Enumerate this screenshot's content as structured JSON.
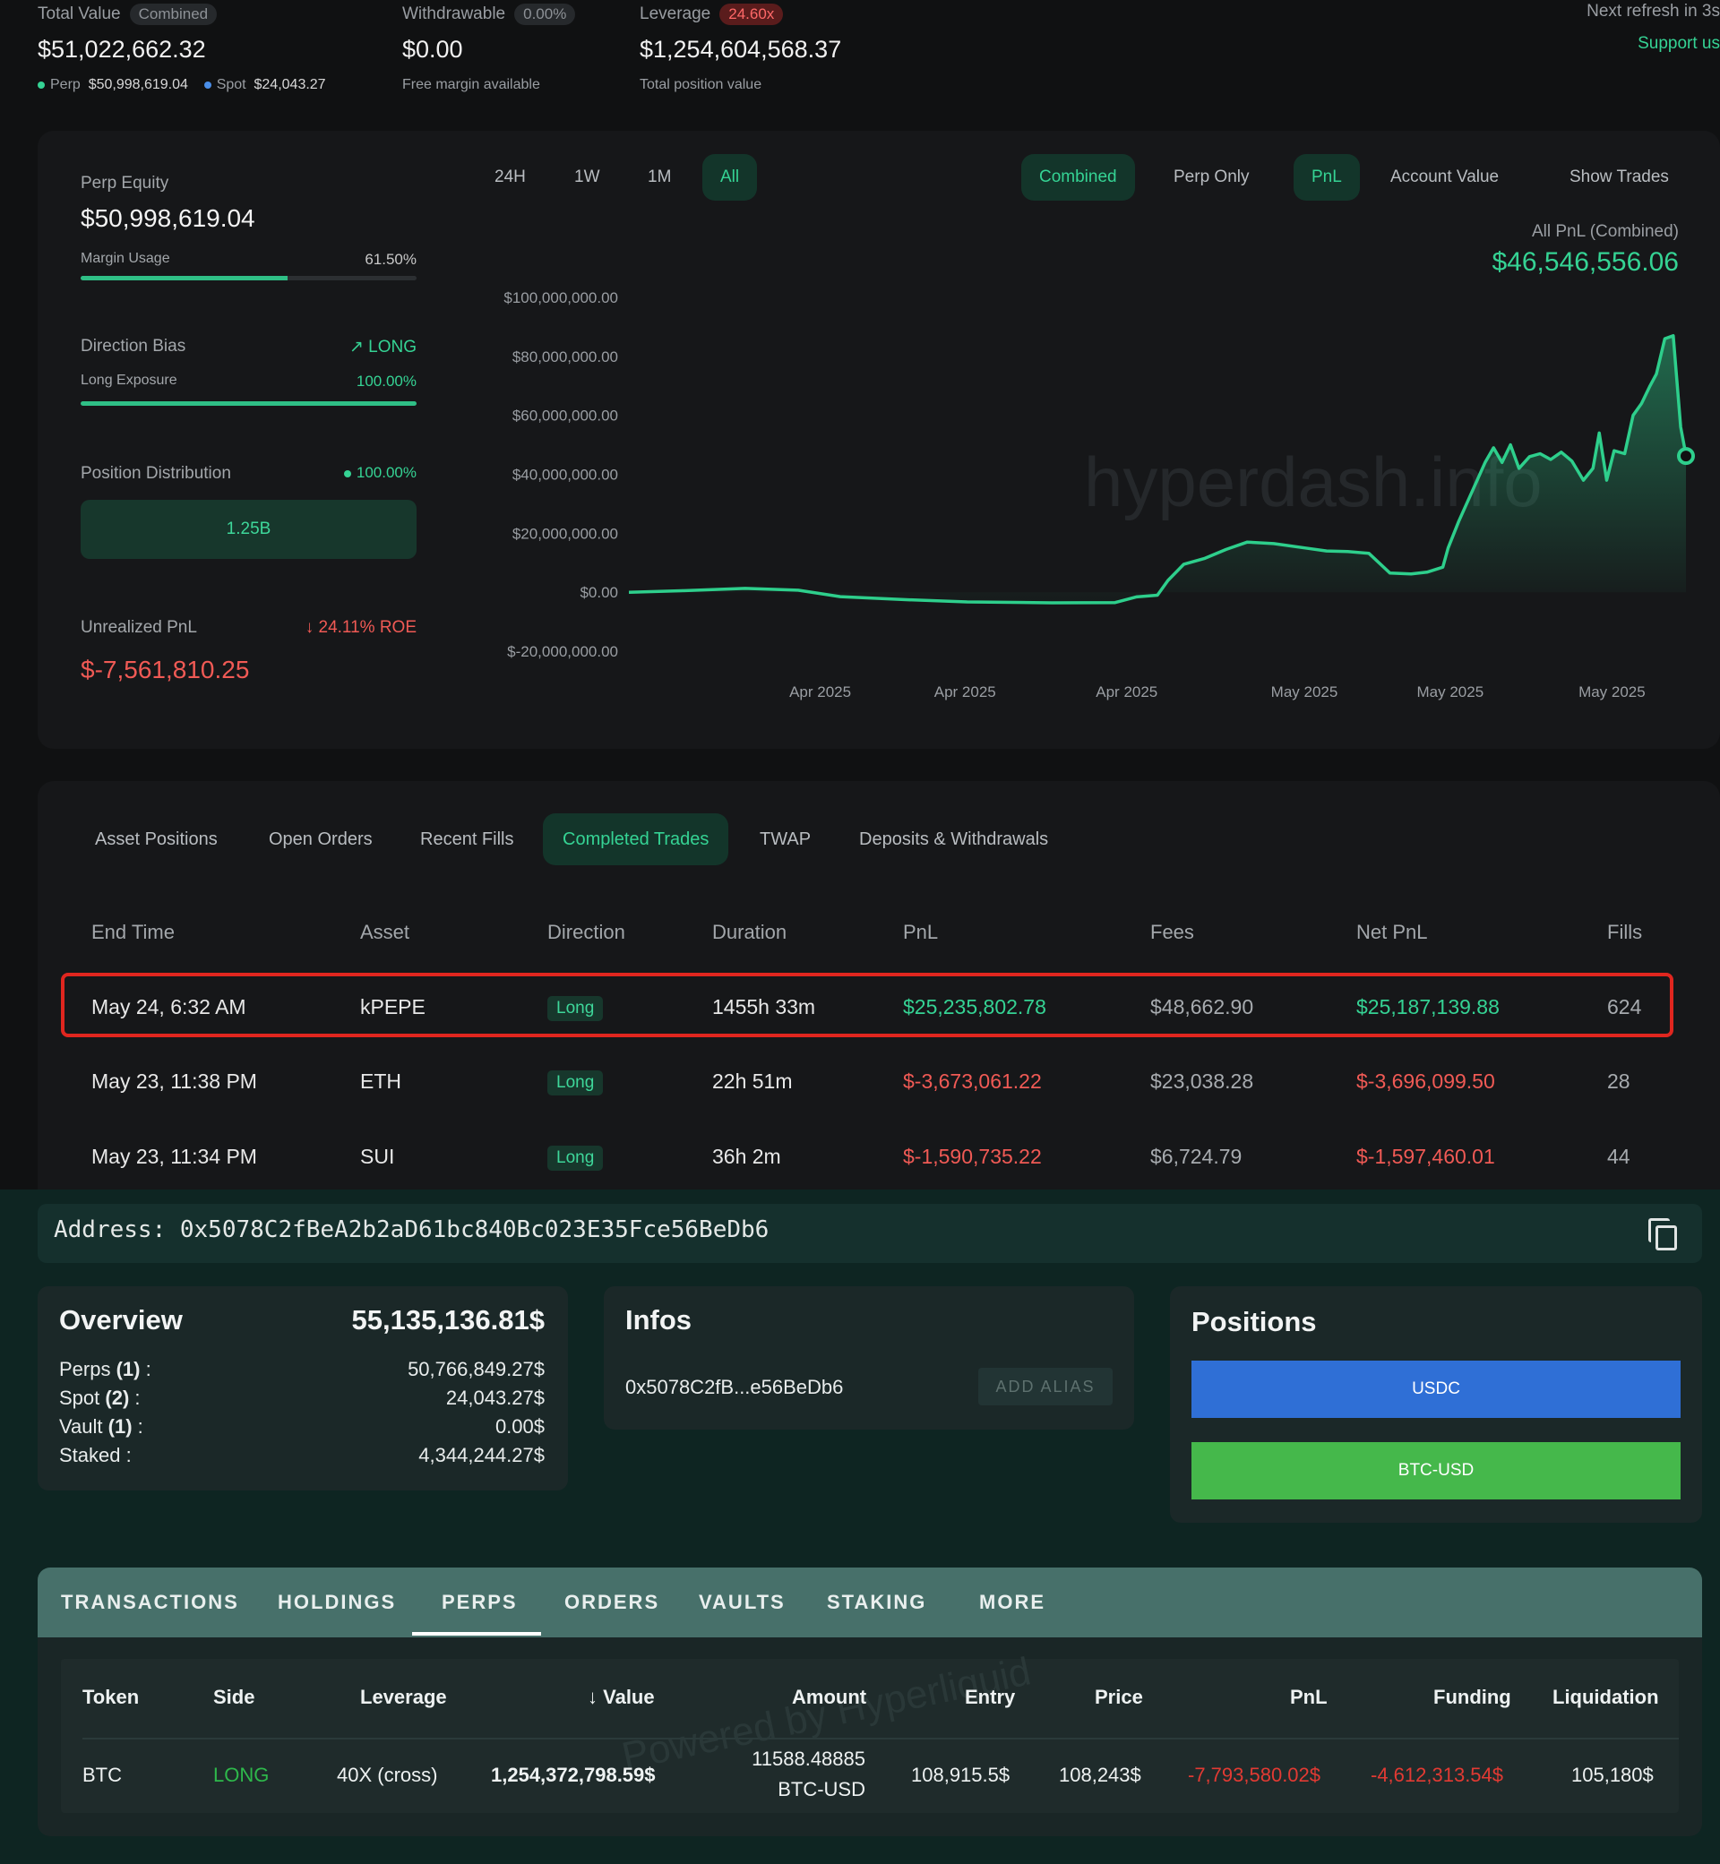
{
  "summary": {
    "total_value_label": "Total Value",
    "total_value_pill": "Combined",
    "total_value": "$51,022,662.32",
    "perp_label": "Perp",
    "perp_value": "$50,998,619.04",
    "spot_label": "Spot",
    "spot_value": "$24,043.27",
    "withdrawable_label": "Withdrawable",
    "withdrawable_pill": "0.00%",
    "withdrawable_value": "$0.00",
    "withdrawable_sub": "Free margin available",
    "leverage_label": "Leverage",
    "leverage_pill": "24.60x",
    "leverage_value": "$1,254,604,568.37",
    "leverage_sub": "Total position value",
    "next_refresh": "Next refresh in 3s",
    "support": "Support us"
  },
  "left_panel": {
    "perp_equity_label": "Perp Equity",
    "perp_equity": "$50,998,619.04",
    "margin_usage_label": "Margin Usage",
    "margin_usage": "61.50%",
    "margin_usage_fraction": 0.615,
    "direction_bias_label": "Direction Bias",
    "direction_bias": "LONG",
    "long_exposure_label": "Long Exposure",
    "long_exposure": "100.00%",
    "long_exposure_fraction": 1.0,
    "position_distribution_label": "Position Distribution",
    "position_distribution": "100.00%",
    "distribution_box": "1.25B",
    "unrealized_pnl_label": "Unrealized PnL",
    "roe": "24.11% ROE",
    "unrealized_pnl": "$-7,561,810.25"
  },
  "chart_controls": {
    "ranges": [
      "24H",
      "1W",
      "1M",
      "All"
    ],
    "active_range": "All",
    "modes": [
      "Combined",
      "Perp Only"
    ],
    "metrics": [
      "PnL",
      "Account Value"
    ],
    "show_trades": "Show Trades",
    "pnl_caption": "All PnL (Combined)",
    "pnl_value": "$46,546,556.06"
  },
  "watermark": "hyperdash.info",
  "chart_data": {
    "type": "area",
    "ylim": [
      -20000000,
      100000000
    ],
    "y_ticks": [
      "$100,000,000.00",
      "$80,000,000.00",
      "$60,000,000.00",
      "$40,000,000.00",
      "$20,000,000.00",
      "$0.00",
      "$-20,000,000.00"
    ],
    "y_tick_values": [
      100000000,
      80000000,
      60000000,
      40000000,
      20000000,
      0,
      -20000000
    ],
    "x_ticks": [
      "Apr 2025",
      "Apr 2025",
      "Apr 2025",
      "May 2025",
      "May 2025",
      "May 2025"
    ],
    "x_tick_positions": [
      0.181,
      0.318,
      0.471,
      0.639,
      0.777,
      0.93
    ],
    "color": "#2ecf8c",
    "series": [
      {
        "values": [
          [
            0.0,
            0
          ],
          [
            0.05,
            500000
          ],
          [
            0.11,
            1300000
          ],
          [
            0.16,
            700000
          ],
          [
            0.2,
            -1500000
          ],
          [
            0.26,
            -2500000
          ],
          [
            0.32,
            -3300000
          ],
          [
            0.4,
            -3600000
          ],
          [
            0.46,
            -3500000
          ],
          [
            0.48,
            -1600000
          ],
          [
            0.5,
            -1000000
          ],
          [
            0.51,
            4000000
          ],
          [
            0.525,
            9500000
          ],
          [
            0.545,
            11500000
          ],
          [
            0.565,
            14500000
          ],
          [
            0.585,
            17000000
          ],
          [
            0.61,
            16500000
          ],
          [
            0.64,
            15000000
          ],
          [
            0.66,
            14000000
          ],
          [
            0.68,
            13800000
          ],
          [
            0.7,
            13200000
          ],
          [
            0.72,
            6500000
          ],
          [
            0.74,
            6200000
          ],
          [
            0.755,
            6800000
          ],
          [
            0.77,
            8500000
          ],
          [
            0.775,
            15000000
          ],
          [
            0.785,
            24000000
          ],
          [
            0.8,
            36000000
          ],
          [
            0.81,
            44000000
          ],
          [
            0.818,
            49000000
          ],
          [
            0.826,
            44000000
          ],
          [
            0.834,
            50000000
          ],
          [
            0.842,
            42000000
          ],
          [
            0.852,
            46000000
          ],
          [
            0.862,
            47000000
          ],
          [
            0.872,
            45000000
          ],
          [
            0.882,
            47500000
          ],
          [
            0.892,
            44500000
          ],
          [
            0.903,
            38000000
          ],
          [
            0.912,
            42000000
          ],
          [
            0.918,
            54000000
          ],
          [
            0.925,
            38000000
          ],
          [
            0.932,
            48000000
          ],
          [
            0.942,
            47000000
          ],
          [
            0.95,
            60000000
          ],
          [
            0.958,
            64000000
          ],
          [
            0.966,
            70000000
          ],
          [
            0.972,
            74000000
          ],
          [
            0.98,
            86000000
          ],
          [
            0.988,
            87000000
          ],
          [
            0.995,
            56000000
          ],
          [
            1.0,
            46500000
          ]
        ]
      }
    ]
  },
  "trade_tabs": {
    "items": [
      "Asset Positions",
      "Open Orders",
      "Recent Fills",
      "Completed Trades",
      "TWAP",
      "Deposits & Withdrawals"
    ],
    "active": "Completed Trades"
  },
  "trades_table": {
    "headers": [
      "End Time",
      "Asset",
      "Direction",
      "Duration",
      "PnL",
      "Fees",
      "Net PnL",
      "Fills"
    ],
    "rows": [
      {
        "end_time": "May 24, 6:32 AM",
        "asset": "kPEPE",
        "direction": "Long",
        "duration": "1455h 33m",
        "pnl": "$25,235,802.78",
        "fees": "$48,662.90",
        "net_pnl": "$25,187,139.88",
        "fills": "624"
      },
      {
        "end_time": "May 23, 11:38 PM",
        "asset": "ETH",
        "direction": "Long",
        "duration": "22h 51m",
        "pnl": "$-3,673,061.22",
        "fees": "$23,038.28",
        "net_pnl": "$-3,696,099.50",
        "fills": "28"
      },
      {
        "end_time": "May 23, 11:34 PM",
        "asset": "SUI",
        "direction": "Long",
        "duration": "36h 2m",
        "pnl": "$-1,590,735.22",
        "fees": "$6,724.79",
        "net_pnl": "$-1,597,460.01",
        "fills": "44"
      }
    ]
  },
  "address_bar": {
    "text": "Address: 0x5078C2fBeA2b2aD61bc840Bc023E35Fce56BeDb6"
  },
  "overview": {
    "title": "Overview",
    "total": "55,135,136.81$",
    "perps_label": "Perps",
    "perps_count": "(1)",
    "perps_value": "50,766,849.27$",
    "spot_label": "Spot",
    "spot_count": "(2)",
    "spot_value": "24,043.27$",
    "vault_label": "Vault",
    "vault_count": "(1)",
    "vault_value": "0.00$",
    "staked_label": "Staked :",
    "staked_value": "4,344,244.27$"
  },
  "infos": {
    "title": "Infos",
    "short_address": "0x5078C2fB...e56BeDb6",
    "add_alias": "ADD ALIAS"
  },
  "positions": {
    "title": "Positions",
    "items": [
      {
        "label": "USDC",
        "color": "#2f6fd6"
      },
      {
        "label": "BTC-USD",
        "color": "#45b84b"
      }
    ]
  },
  "main_tabs": {
    "items": [
      "TRANSACTIONS",
      "HOLDINGS",
      "PERPS",
      "ORDERS",
      "VAULTS",
      "STAKING",
      "MORE"
    ],
    "active": "PERPS"
  },
  "perps_table": {
    "headers": [
      "Token",
      "Side",
      "Leverage",
      "Value",
      "Amount",
      "Entry",
      "Price",
      "PnL",
      "Funding",
      "Liquidation"
    ],
    "sort_indicator": "↓",
    "row": {
      "token": "BTC",
      "side": "LONG",
      "leverage": "40X (cross)",
      "value": "1,254,372,798.59$",
      "amount_line1": "11588.48885",
      "amount_line2": "BTC-USD",
      "entry": "108,915.5$",
      "price": "108,243$",
      "pnl": "-7,793,580.02$",
      "funding": "-4,612,313.54$",
      "liquidation": "105,180$"
    },
    "watermark": "Powered by Hyperliquid"
  }
}
